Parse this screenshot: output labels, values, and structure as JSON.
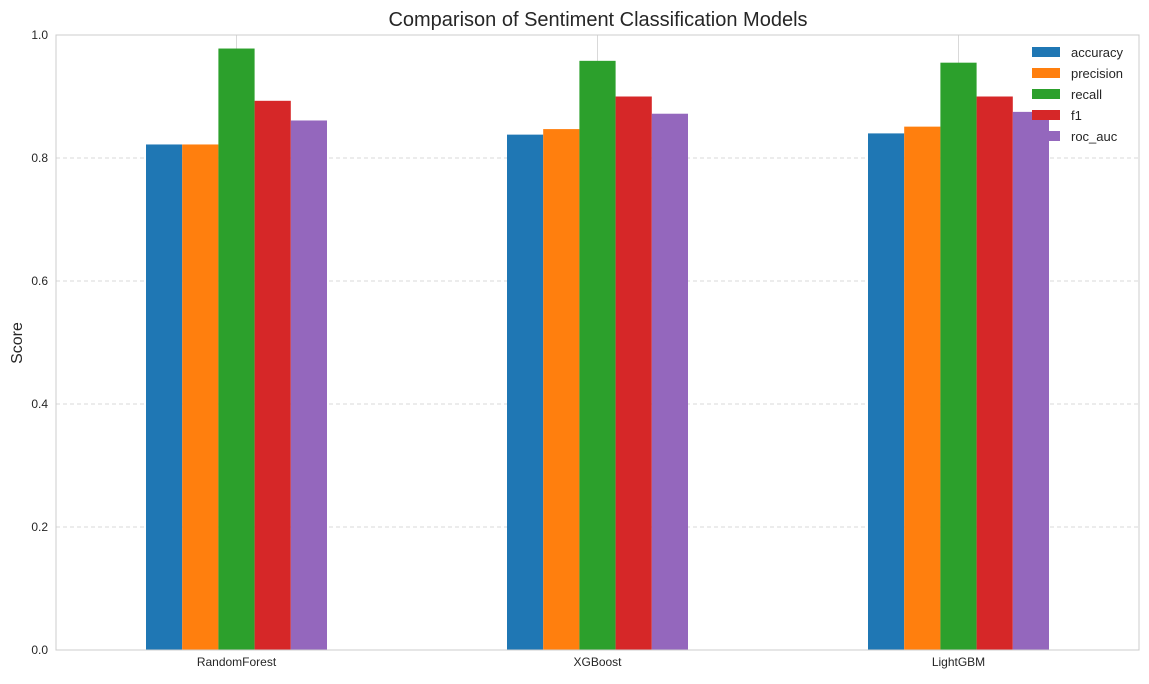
{
  "chart_data": {
    "type": "bar",
    "title": "Comparison of Sentiment Classification Models",
    "xlabel": "",
    "ylabel": "Score",
    "categories": [
      "RandomForest",
      "XGBoost",
      "LightGBM"
    ],
    "ylim": [
      0,
      1.0
    ],
    "yticks": [
      "0.0",
      "0.2",
      "0.4",
      "0.6",
      "0.8",
      "1.0"
    ],
    "grid": true,
    "legend_position": "top-right",
    "series": [
      {
        "name": "accuracy",
        "color": "#1f77b4",
        "values": [
          0.822,
          0.838,
          0.84
        ]
      },
      {
        "name": "precision",
        "color": "#ff7f0e",
        "values": [
          0.822,
          0.847,
          0.851
        ]
      },
      {
        "name": "recall",
        "color": "#2ca02c",
        "values": [
          0.978,
          0.958,
          0.955
        ]
      },
      {
        "name": "f1",
        "color": "#d62728",
        "values": [
          0.893,
          0.9,
          0.9
        ]
      },
      {
        "name": "roc_auc",
        "color": "#9467bd",
        "values": [
          0.861,
          0.872,
          0.875
        ]
      }
    ]
  }
}
